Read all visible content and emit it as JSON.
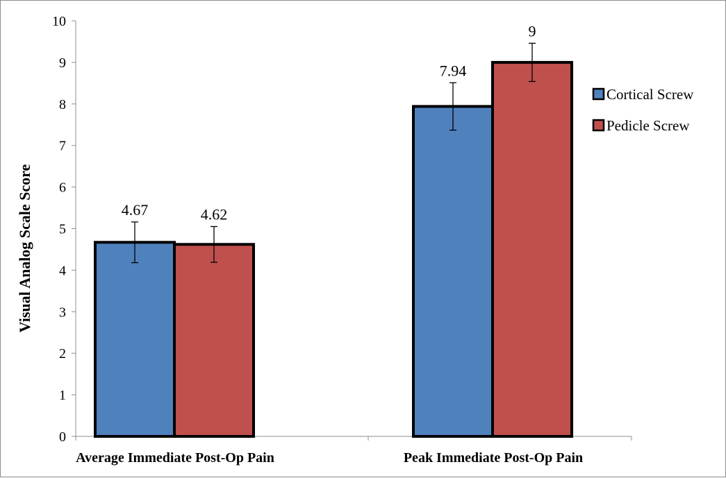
{
  "chart_data": {
    "type": "bar",
    "categories": [
      "Average Immediate Post-Op Pain",
      "Peak Immediate Post-Op Pain"
    ],
    "series": [
      {
        "name": "Cortical Screw",
        "color": "#4f81bd",
        "values": [
          4.67,
          7.94
        ],
        "error": [
          0.49,
          0.57
        ]
      },
      {
        "name": "Pedicle Screw",
        "color": "#c0504d",
        "values": [
          4.62,
          9
        ],
        "error": [
          0.43,
          0.46
        ]
      }
    ],
    "data_labels": [
      "4.67",
      "7.94",
      "4.62",
      "9"
    ],
    "ylabel": "Visual Analog Scale Score",
    "xlabel": "",
    "ylim": [
      0,
      10
    ],
    "yticks": [
      "0",
      "1",
      "2",
      "3",
      "4",
      "5",
      "6",
      "7",
      "8",
      "9",
      "10"
    ],
    "legend_position": "right",
    "grid": false
  }
}
